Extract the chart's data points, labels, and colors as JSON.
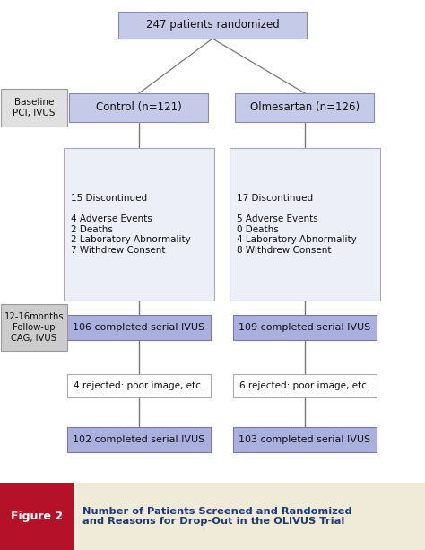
{
  "title": "247 patients randomized",
  "left_branch": "Control (n=121)",
  "right_branch": "Olmesartan (n=126)",
  "left_discontinued": "15 Discontinued\n\n4 Adverse Events\n2 Deaths\n2 Laboratory Abnormality\n7 Withdrew Consent",
  "right_discontinued": "17 Discontinued\n\n5 Adverse Events\n0 Deaths\n4 Laboratory Abnormality\n8 Withdrew Consent",
  "left_serial1": "106 completed serial IVUS",
  "right_serial1": "109 completed serial IVUS",
  "left_rejected_left": "4 rejected: poor image, etc.",
  "left_rejected_right": "6 rejected: poor image, etc.",
  "left_serial2": "102 completed serial IVUS",
  "right_serial2": "103 completed serial IVUS",
  "baseline_label": "Baseline\nPCI, IVUS",
  "followup_label": "12-16months\nFollow-up\nCAG, IVUS",
  "figure_label": "Figure 2",
  "figure_title": "Number of Patients Screened and Randomized\nand Reasons for Drop-Out in the OLIVUS Trial",
  "box_blue_light": "#c5cae9",
  "box_blue_medium": "#9fa8da",
  "line_color": "#777777",
  "figure_bg": "#f0ead8",
  "figure_label_bg": "#b5122a",
  "figure_title_color": "#1a3a7a"
}
